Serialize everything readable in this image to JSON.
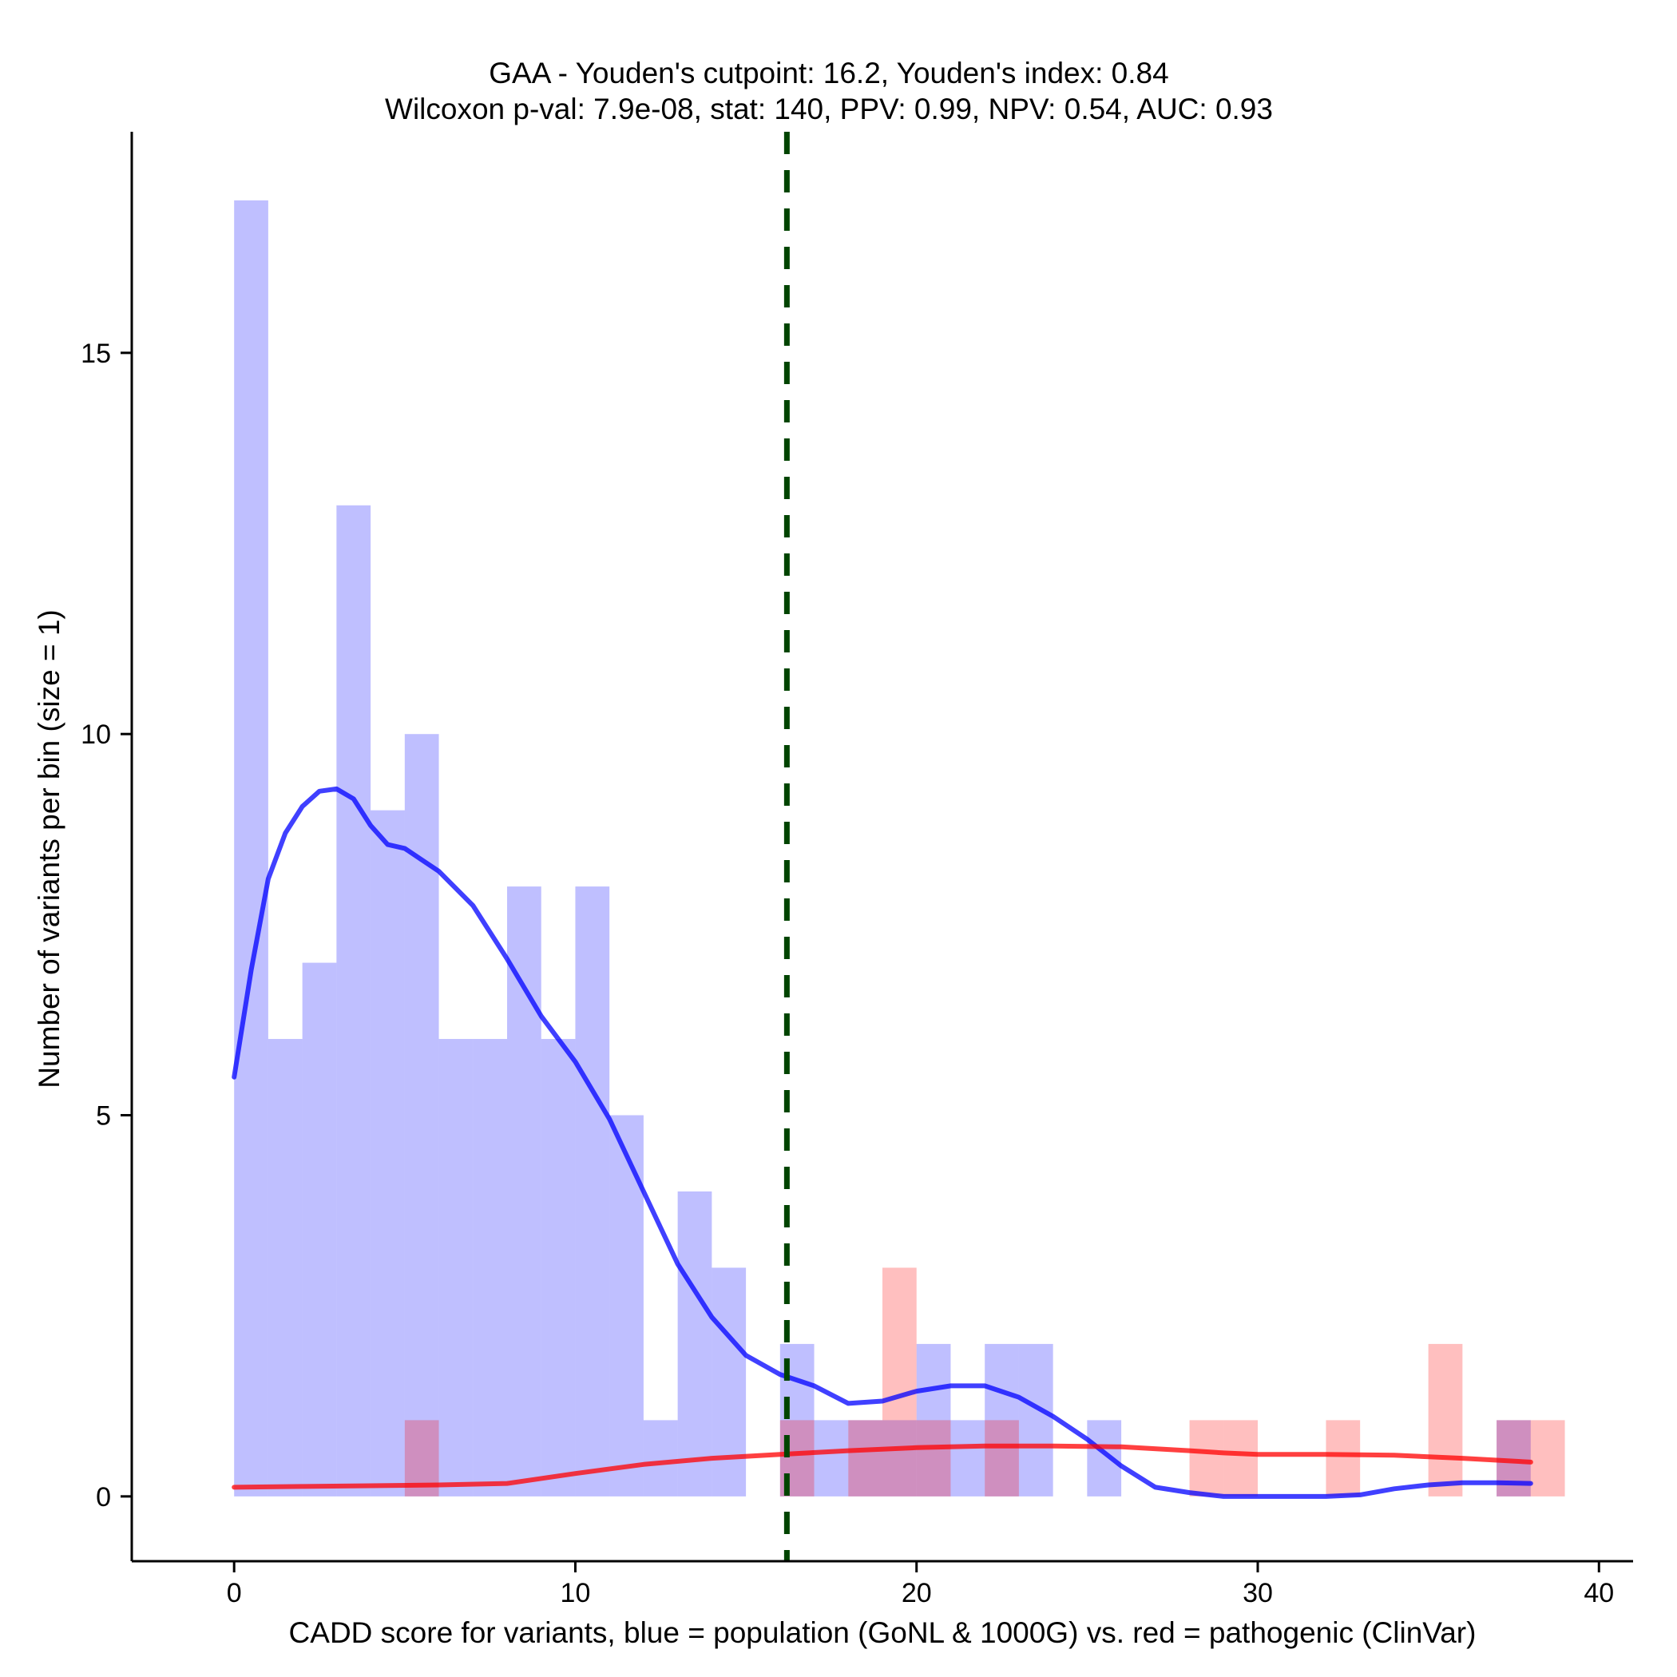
{
  "chart_data": {
    "type": "bar",
    "title": "GAA - Youden's cutpoint: 16.2, Youden's index: 0.84",
    "subtitle": "Wilcoxon p-val: 7.9e-08, stat: 140, PPV: 0.99, NPV: 0.54, AUC: 0.93",
    "xlabel": "CADD score for variants, blue = population (GoNL & 1000G) vs. red = pathogenic (ClinVar)",
    "ylabel": "Number of variants per bin (size = 1)",
    "xlim": [
      -3,
      41
    ],
    "ylim": [
      -0.85,
      17.9
    ],
    "x_ticks": [
      0,
      10,
      20,
      30,
      40
    ],
    "y_ticks": [
      0,
      5,
      10,
      15
    ],
    "bin_width": 1,
    "cutpoint": 16.2,
    "colors": {
      "population": "#0000ff",
      "pathogenic": "#ff0000",
      "cutpoint_line": "#004400",
      "axis": "#000000"
    },
    "series": [
      {
        "name": "population (GoNL & 1000G)",
        "color": "#0000ff",
        "bins": [
          {
            "x": 0,
            "count": 17
          },
          {
            "x": 1,
            "count": 6
          },
          {
            "x": 2,
            "count": 7
          },
          {
            "x": 3,
            "count": 13
          },
          {
            "x": 4,
            "count": 9
          },
          {
            "x": 5,
            "count": 10
          },
          {
            "x": 6,
            "count": 6
          },
          {
            "x": 7,
            "count": 6
          },
          {
            "x": 8,
            "count": 8
          },
          {
            "x": 9,
            "count": 6
          },
          {
            "x": 10,
            "count": 8
          },
          {
            "x": 11,
            "count": 5
          },
          {
            "x": 12,
            "count": 1
          },
          {
            "x": 13,
            "count": 4
          },
          {
            "x": 14,
            "count": 3
          },
          {
            "x": 16,
            "count": 2
          },
          {
            "x": 17,
            "count": 1
          },
          {
            "x": 18,
            "count": 1
          },
          {
            "x": 19,
            "count": 1
          },
          {
            "x": 20,
            "count": 2
          },
          {
            "x": 21,
            "count": 1
          },
          {
            "x": 22,
            "count": 2
          },
          {
            "x": 23,
            "count": 2
          },
          {
            "x": 25,
            "count": 1
          },
          {
            "x": 37,
            "count": 1
          }
        ],
        "density_curve": [
          [
            0,
            5.5
          ],
          [
            0.5,
            6.9
          ],
          [
            1,
            8.1
          ],
          [
            1.5,
            8.7
          ],
          [
            2,
            9.05
          ],
          [
            2.5,
            9.25
          ],
          [
            3,
            9.28
          ],
          [
            3.5,
            9.15
          ],
          [
            4,
            8.8
          ],
          [
            4.5,
            8.55
          ],
          [
            5,
            8.5
          ],
          [
            5.5,
            8.35
          ],
          [
            6,
            8.2
          ],
          [
            7,
            7.75
          ],
          [
            8,
            7.05
          ],
          [
            9,
            6.3
          ],
          [
            10,
            5.7
          ],
          [
            11,
            4.95
          ],
          [
            12,
            4.0
          ],
          [
            13,
            3.05
          ],
          [
            14,
            2.35
          ],
          [
            15,
            1.85
          ],
          [
            16,
            1.6
          ],
          [
            17,
            1.45
          ],
          [
            18,
            1.22
          ],
          [
            19,
            1.25
          ],
          [
            20,
            1.38
          ],
          [
            21,
            1.45
          ],
          [
            22,
            1.45
          ],
          [
            23,
            1.3
          ],
          [
            24,
            1.05
          ],
          [
            25,
            0.75
          ],
          [
            26,
            0.4
          ],
          [
            27,
            0.12
          ],
          [
            28,
            0.05
          ],
          [
            29,
            0.0
          ],
          [
            30,
            0.0
          ],
          [
            31,
            0.0
          ],
          [
            32,
            0.0
          ],
          [
            33,
            0.02
          ],
          [
            34,
            0.1
          ],
          [
            35,
            0.15
          ],
          [
            36,
            0.18
          ],
          [
            37,
            0.18
          ],
          [
            38,
            0.17
          ]
        ]
      },
      {
        "name": "pathogenic (ClinVar)",
        "color": "#ff0000",
        "bins": [
          {
            "x": 5,
            "count": 1
          },
          {
            "x": 16,
            "count": 1
          },
          {
            "x": 18,
            "count": 1
          },
          {
            "x": 19,
            "count": 3
          },
          {
            "x": 20,
            "count": 1
          },
          {
            "x": 22,
            "count": 1
          },
          {
            "x": 28,
            "count": 1
          },
          {
            "x": 29,
            "count": 1
          },
          {
            "x": 32,
            "count": 1
          },
          {
            "x": 35,
            "count": 2
          },
          {
            "x": 37,
            "count": 1
          },
          {
            "x": 38,
            "count": 1
          }
        ],
        "density_curve": [
          [
            0,
            0.12
          ],
          [
            2,
            0.13
          ],
          [
            4,
            0.14
          ],
          [
            6,
            0.15
          ],
          [
            8,
            0.17
          ],
          [
            10,
            0.3
          ],
          [
            12,
            0.42
          ],
          [
            14,
            0.5
          ],
          [
            16,
            0.55
          ],
          [
            18,
            0.6
          ],
          [
            20,
            0.64
          ],
          [
            22,
            0.66
          ],
          [
            24,
            0.66
          ],
          [
            26,
            0.65
          ],
          [
            28,
            0.6
          ],
          [
            29,
            0.57
          ],
          [
            30,
            0.55
          ],
          [
            32,
            0.55
          ],
          [
            34,
            0.54
          ],
          [
            36,
            0.5
          ],
          [
            38,
            0.45
          ]
        ]
      }
    ]
  }
}
